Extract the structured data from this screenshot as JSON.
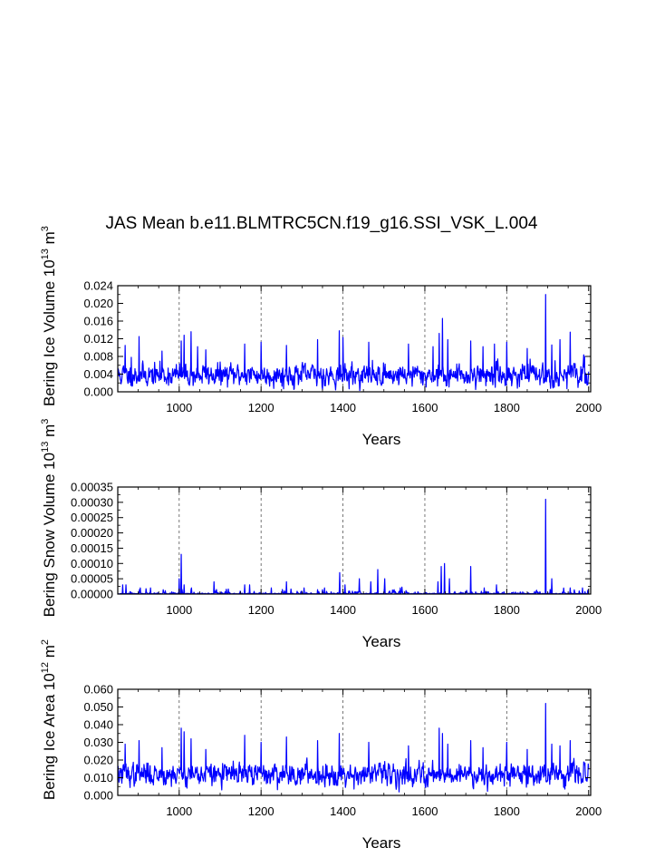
{
  "page_title": "JAS Mean b.e11.BLMTRC5CN.f19_g16.SSI_VSK_L.004",
  "line_color": "#0000ff",
  "chart_data": [
    {
      "type": "line",
      "xlabel": "Years",
      "ylabel": "Bering Ice Volume 10",
      "ylabel_exp": "13",
      "ylabel_unit": "m",
      "ylabel_unit_exp": "3",
      "xlim": [
        850,
        2005
      ],
      "ylim": [
        0,
        0.024
      ],
      "xticks": [
        1000,
        1200,
        1400,
        1600,
        1800,
        2000
      ],
      "yticks": [
        "0.000",
        "0.004",
        "0.008",
        "0.012",
        "0.016",
        "0.020",
        "0.024"
      ],
      "ytick_values": [
        0,
        0.004,
        0.008,
        0.012,
        0.016,
        0.02,
        0.024
      ],
      "gridlines_x": [
        1000,
        1200,
        1400,
        1600,
        1800
      ],
      "baseline": 0.0038,
      "noise": 0.0018,
      "floor": 0.0003,
      "seed": 11,
      "peaks": [
        [
          868,
          0.0105
        ],
        [
          883,
          0.0078
        ],
        [
          902,
          0.0125
        ],
        [
          958,
          0.0092
        ],
        [
          1005,
          0.0115
        ],
        [
          1012,
          0.0128
        ],
        [
          1029,
          0.0136
        ],
        [
          1045,
          0.0102
        ],
        [
          1065,
          0.0095
        ],
        [
          1160,
          0.0108
        ],
        [
          1200,
          0.0112
        ],
        [
          1262,
          0.0105
        ],
        [
          1338,
          0.0118
        ],
        [
          1391,
          0.0138
        ],
        [
          1400,
          0.0123
        ],
        [
          1463,
          0.0112
        ],
        [
          1560,
          0.0108
        ],
        [
          1620,
          0.0102
        ],
        [
          1635,
          0.0132
        ],
        [
          1643,
          0.0166
        ],
        [
          1656,
          0.0118
        ],
        [
          1712,
          0.0115
        ],
        [
          1742,
          0.0102
        ],
        [
          1770,
          0.0108
        ],
        [
          1800,
          0.0112
        ],
        [
          1850,
          0.0098
        ],
        [
          1895,
          0.022
        ],
        [
          1910,
          0.0106
        ],
        [
          1930,
          0.0118
        ],
        [
          1955,
          0.0135
        ],
        [
          1990,
          0.008
        ]
      ]
    },
    {
      "type": "line",
      "xlabel": "Years",
      "ylabel": "Bering Snow Volume 10",
      "ylabel_exp": "13",
      "ylabel_unit": "m",
      "ylabel_unit_exp": "3",
      "xlim": [
        850,
        2005
      ],
      "ylim": [
        0,
        0.00035
      ],
      "xticks": [
        1000,
        1200,
        1400,
        1600,
        1800,
        2000
      ],
      "yticks": [
        "0.00000",
        "0.00005",
        "0.00010",
        "0.00015",
        "0.00020",
        "0.00025",
        "0.00030",
        "0.00035"
      ],
      "ytick_values": [
        0,
        5e-05,
        0.0001,
        0.00015,
        0.0002,
        0.00025,
        0.0003,
        0.00035
      ],
      "gridlines_x": [
        1000,
        1200,
        1400,
        1600,
        1800
      ],
      "baseline": 0.0,
      "noise": 4e-06,
      "floor": 0.0,
      "seed": 23,
      "peaks": [
        [
          862,
          3e-05
        ],
        [
          870,
          3e-05
        ],
        [
          905,
          2e-05
        ],
        [
          930,
          2e-05
        ],
        [
          1000,
          5e-05
        ],
        [
          1005,
          0.00013
        ],
        [
          1012,
          3e-05
        ],
        [
          1030,
          2e-05
        ],
        [
          1085,
          4e-05
        ],
        [
          1160,
          3e-05
        ],
        [
          1172,
          3e-05
        ],
        [
          1225,
          2e-05
        ],
        [
          1262,
          4e-05
        ],
        [
          1305,
          2e-05
        ],
        [
          1355,
          2e-05
        ],
        [
          1392,
          7e-05
        ],
        [
          1405,
          3e-05
        ],
        [
          1440,
          5e-05
        ],
        [
          1468,
          4e-05
        ],
        [
          1485,
          8e-05
        ],
        [
          1502,
          5e-05
        ],
        [
          1540,
          2e-05
        ],
        [
          1632,
          4e-05
        ],
        [
          1640,
          9e-05
        ],
        [
          1648,
          0.0001
        ],
        [
          1660,
          5e-05
        ],
        [
          1712,
          9e-05
        ],
        [
          1745,
          2e-05
        ],
        [
          1775,
          3e-05
        ],
        [
          1895,
          0.00031
        ],
        [
          1910,
          5e-05
        ],
        [
          1955,
          2e-05
        ],
        [
          1985,
          2e-05
        ]
      ]
    },
    {
      "type": "line",
      "xlabel": "Years",
      "ylabel": "Bering Ice Area 10",
      "ylabel_exp": "12",
      "ylabel_unit": "m",
      "ylabel_unit_exp": "2",
      "xlim": [
        850,
        2005
      ],
      "ylim": [
        0,
        0.06
      ],
      "xticks": [
        1000,
        1200,
        1400,
        1600,
        1800,
        2000
      ],
      "yticks": [
        "0.000",
        "0.010",
        "0.020",
        "0.030",
        "0.040",
        "0.050",
        "0.060"
      ],
      "ytick_values": [
        0,
        0.01,
        0.02,
        0.03,
        0.04,
        0.05,
        0.06
      ],
      "gridlines_x": [
        1000,
        1200,
        1400,
        1600,
        1800
      ],
      "baseline": 0.012,
      "noise": 0.0045,
      "floor": 0.001,
      "seed": 37,
      "peaks": [
        [
          868,
          0.029
        ],
        [
          902,
          0.031
        ],
        [
          958,
          0.027
        ],
        [
          1005,
          0.038
        ],
        [
          1012,
          0.036
        ],
        [
          1029,
          0.032
        ],
        [
          1065,
          0.026
        ],
        [
          1160,
          0.034
        ],
        [
          1200,
          0.03
        ],
        [
          1262,
          0.033
        ],
        [
          1338,
          0.031
        ],
        [
          1391,
          0.035
        ],
        [
          1463,
          0.03
        ],
        [
          1560,
          0.028
        ],
        [
          1635,
          0.038
        ],
        [
          1643,
          0.035
        ],
        [
          1656,
          0.029
        ],
        [
          1712,
          0.031
        ],
        [
          1742,
          0.027
        ],
        [
          1800,
          0.03
        ],
        [
          1850,
          0.026
        ],
        [
          1895,
          0.052
        ],
        [
          1910,
          0.029
        ],
        [
          1930,
          0.028
        ],
        [
          1955,
          0.031
        ]
      ]
    }
  ]
}
